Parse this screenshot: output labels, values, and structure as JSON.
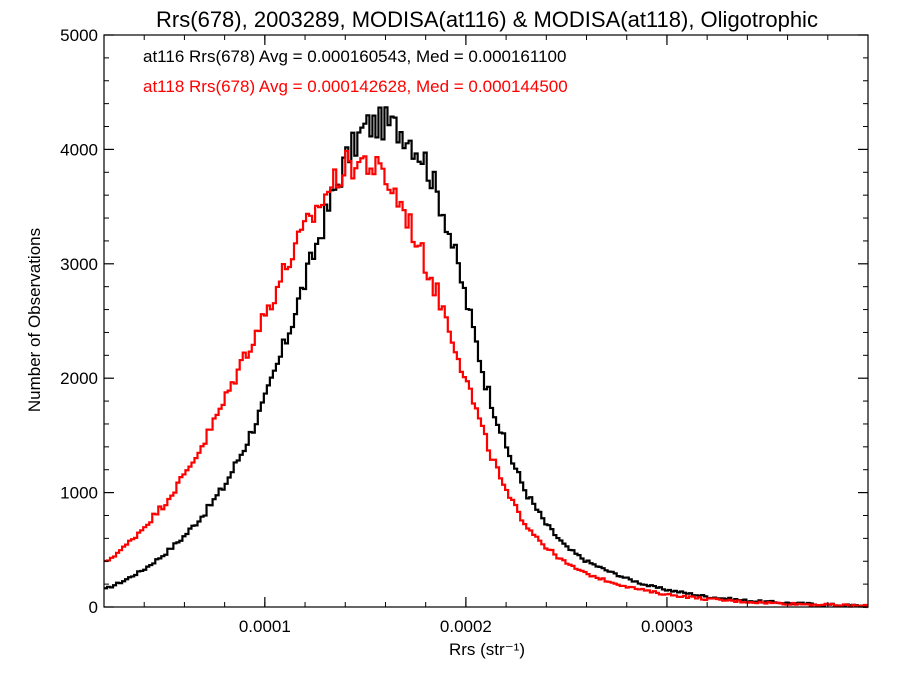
{
  "chart_data": {
    "type": "line",
    "title": "Rrs(678), 2003289, MODISA(at116) & MODISA(at118), Oligotrophic",
    "xlabel": "Rrs (str⁻¹)",
    "ylabel": "Number of Observations",
    "xlim": [
      2e-05,
      0.0004
    ],
    "ylim": [
      0,
      5000
    ],
    "x_ticks": [
      0.0001,
      0.0002,
      0.0003
    ],
    "x_tick_labels": [
      "0.0001",
      "0.0002",
      "0.0003"
    ],
    "y_ticks": [
      0,
      1000,
      2000,
      3000,
      4000,
      5000
    ],
    "y_tick_labels": [
      "0",
      "1000",
      "2000",
      "3000",
      "4000",
      "5000"
    ],
    "grid": false,
    "legend_placement": "top-left",
    "series": [
      {
        "name": "at116",
        "color": "#000000",
        "label": "at116 Rrs(678) Avg = 0.000160543, Med = 0.000161100",
        "x": [
          2e-05,
          3e-05,
          4e-05,
          5e-05,
          6e-05,
          7e-05,
          8e-05,
          9e-05,
          0.0001,
          0.00011,
          0.00012,
          0.00013,
          0.00014,
          0.00015,
          0.00016,
          0.00017,
          0.00018,
          0.00019,
          0.0002,
          0.00021,
          0.00022,
          0.00023,
          0.00024,
          0.00025,
          0.00026,
          0.00027,
          0.00028,
          0.00029,
          0.0003,
          0.00032,
          0.00034,
          0.00036,
          0.00038,
          0.0004
        ],
        "y": [
          150,
          230,
          330,
          460,
          620,
          820,
          1060,
          1400,
          1800,
          2300,
          2850,
          3400,
          3900,
          4200,
          4230,
          4150,
          3900,
          3400,
          2700,
          1950,
          1400,
          1000,
          720,
          520,
          400,
          320,
          250,
          190,
          150,
          90,
          55,
          35,
          20,
          10
        ]
      },
      {
        "name": "at118",
        "color": "#ff0000",
        "label": "at118 Rrs(678) Avg = 0.000142628, Med = 0.000144500",
        "x": [
          2e-05,
          3e-05,
          4e-05,
          5e-05,
          6e-05,
          7e-05,
          8e-05,
          9e-05,
          0.0001,
          0.00011,
          0.00012,
          0.00013,
          0.00014,
          0.00015,
          0.00016,
          0.00017,
          0.00018,
          0.00019,
          0.0002,
          0.00021,
          0.00022,
          0.00023,
          0.00024,
          0.00025,
          0.00026,
          0.00027,
          0.00028,
          0.00029,
          0.0003,
          0.00032,
          0.00034,
          0.00036,
          0.00038,
          0.0004
        ],
        "y": [
          380,
          520,
          700,
          900,
          1150,
          1450,
          1800,
          2200,
          2550,
          2950,
          3300,
          3600,
          3850,
          3900,
          3750,
          3450,
          3000,
          2550,
          2000,
          1450,
          1000,
          720,
          520,
          380,
          290,
          230,
          180,
          140,
          110,
          70,
          45,
          30,
          18,
          8
        ]
      }
    ]
  }
}
